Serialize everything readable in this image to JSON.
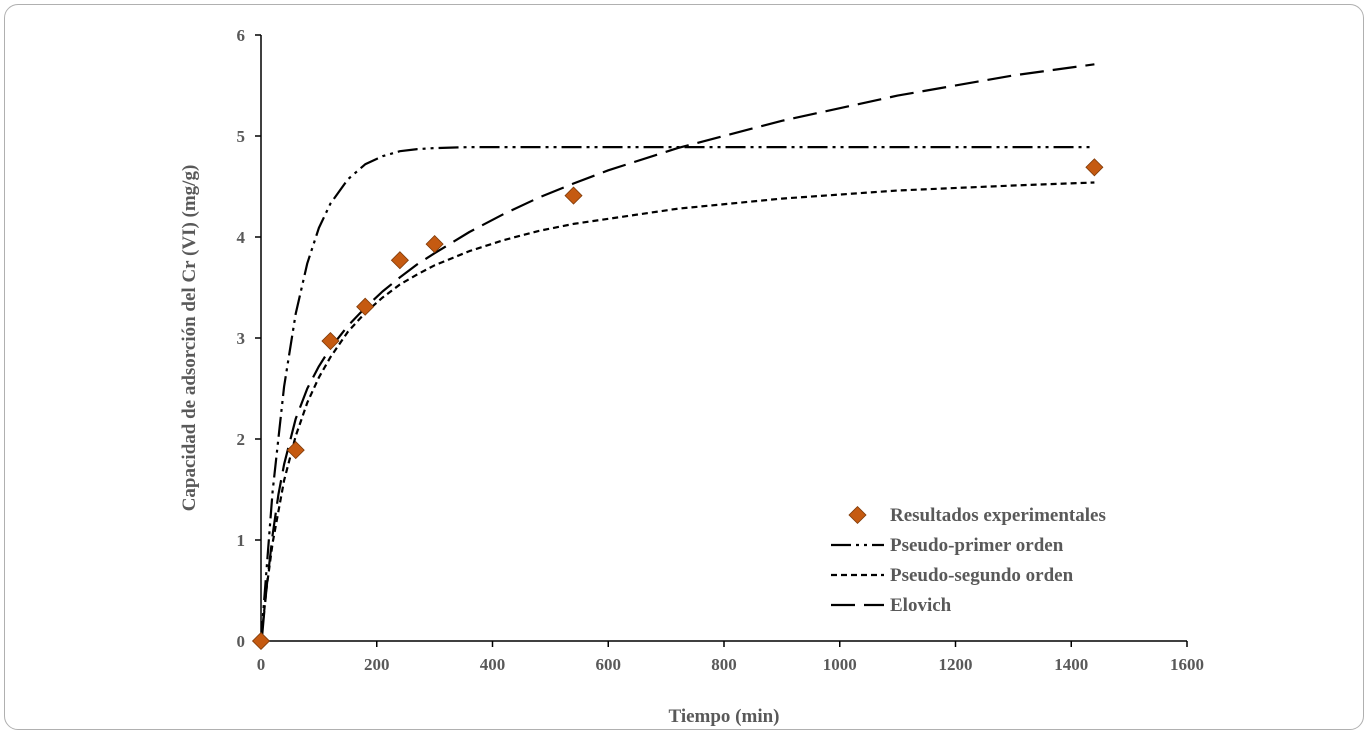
{
  "chart_data": {
    "type": "scatter",
    "title": "",
    "xlabel": "Tiempo (min)",
    "ylabel": "Capacidad de adsorción del Cr (VI)  (mg/g)",
    "xlim": [
      0,
      1600
    ],
    "ylim": [
      0,
      6
    ],
    "xticks": [
      0,
      200,
      400,
      600,
      800,
      1000,
      1200,
      1400,
      1600
    ],
    "yticks": [
      0,
      1,
      2,
      3,
      4,
      5,
      6
    ],
    "grid": false,
    "legend_position": "bottom-right",
    "series": [
      {
        "name": "Resultados experimentales",
        "kind": "scatter",
        "marker": "diamond",
        "color": "#c55a11",
        "x": [
          0,
          60,
          120,
          180,
          240,
          300,
          540,
          1440
        ],
        "y": [
          0,
          1.89,
          2.97,
          3.31,
          3.77,
          3.93,
          4.41,
          4.69
        ]
      },
      {
        "name": "Pseudo-primer orden",
        "kind": "line",
        "dash": "dash-dot-dot",
        "color": "#000000",
        "x": [
          0,
          20,
          40,
          60,
          80,
          100,
          120,
          150,
          180,
          210,
          240,
          270,
          300,
          360,
          420,
          480,
          540,
          600,
          720,
          900,
          1100,
          1300,
          1440
        ],
        "y": [
          0,
          1.48,
          2.52,
          3.24,
          3.74,
          4.09,
          4.33,
          4.57,
          4.72,
          4.8,
          4.85,
          4.87,
          4.88,
          4.89,
          4.89,
          4.89,
          4.89,
          4.89,
          4.89,
          4.89,
          4.89,
          4.89,
          4.89
        ]
      },
      {
        "name": "Pseudo-segundo orden",
        "kind": "line",
        "dash": "short-dash",
        "color": "#000000",
        "x": [
          0,
          10,
          20,
          40,
          60,
          80,
          100,
          120,
          150,
          180,
          210,
          240,
          270,
          300,
          360,
          420,
          480,
          540,
          600,
          720,
          900,
          1100,
          1300,
          1440
        ],
        "y": [
          0,
          0.54,
          0.97,
          1.59,
          2.03,
          2.36,
          2.61,
          2.81,
          3.06,
          3.25,
          3.4,
          3.53,
          3.63,
          3.72,
          3.86,
          3.97,
          4.06,
          4.13,
          4.18,
          4.28,
          4.38,
          4.46,
          4.51,
          4.54
        ]
      },
      {
        "name": "Elovich",
        "kind": "line",
        "dash": "long-dash",
        "color": "#000000",
        "x": [
          2,
          5,
          10,
          20,
          30,
          40,
          60,
          80,
          100,
          120,
          150,
          180,
          210,
          240,
          270,
          300,
          360,
          420,
          480,
          540,
          600,
          720,
          900,
          1100,
          1300,
          1440
        ],
        "y": [
          0.06,
          0.25,
          0.55,
          1.05,
          1.45,
          1.75,
          2.2,
          2.5,
          2.72,
          2.9,
          3.12,
          3.3,
          3.46,
          3.6,
          3.73,
          3.84,
          4.05,
          4.23,
          4.39,
          4.53,
          4.66,
          4.88,
          5.15,
          5.4,
          5.6,
          5.71
        ]
      }
    ]
  }
}
